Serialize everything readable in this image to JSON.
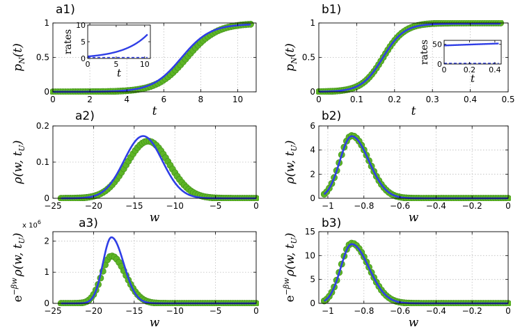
{
  "colors": {
    "simulation": "#5db426",
    "theory": "#2f3ee6",
    "sim_edge": "#3f8f17",
    "grid": "#bcbcbc"
  },
  "chart_data": [
    {
      "id": "a1",
      "type": "line",
      "title": "a1)",
      "xlabel": "t",
      "ylabel": "p_N(t)",
      "ylabel_parts": {
        "main": "p",
        "sub": "N",
        "args": "(t)"
      },
      "xlim": [
        0,
        11
      ],
      "ylim": [
        0,
        1
      ],
      "xticks": [
        0,
        2,
        4,
        6,
        8,
        10
      ],
      "yticks": [
        0,
        0.5,
        1
      ],
      "xtick_labels": [
        "0",
        "2",
        "4",
        "6",
        "8",
        "10"
      ],
      "ytick_labels": [
        "0",
        "0.5",
        "1"
      ],
      "grid": true,
      "series": [
        {
          "name": "simulation",
          "style": "markers",
          "model": "sigmoid",
          "center": 7.25,
          "width": 0.8,
          "amplitude": 0.995,
          "x_range": [
            0,
            10.7
          ],
          "n": 80
        },
        {
          "name": "theory",
          "style": "line",
          "model": "sigmoid",
          "center": 6.95,
          "width": 0.78,
          "amplitude": 0.985,
          "x_range": [
            0,
            10.7
          ]
        }
      ],
      "inset": {
        "xlabel": "t",
        "ylabel": "rates",
        "xlim": [
          0,
          11
        ],
        "ylim": [
          0,
          10
        ],
        "xticks": [
          0,
          5,
          10
        ],
        "yticks": [
          0,
          5,
          10
        ],
        "xtick_labels": [
          "0",
          "5",
          "10"
        ],
        "ytick_labels": [
          "0",
          "5",
          "10"
        ],
        "series": [
          {
            "name": "rate",
            "style": "line",
            "model": "exp",
            "start": 0.6,
            "end": 7.2,
            "x_range": [
              0,
              10.5
            ]
          },
          {
            "name": "baseline",
            "style": "dashed",
            "model": "const",
            "value": 0.3,
            "x_range": [
              0,
              10.5
            ]
          }
        ]
      }
    },
    {
      "id": "b1",
      "type": "line",
      "title": "b1)",
      "xlabel": "t",
      "ylabel": "p_N(t)",
      "ylabel_parts": {
        "main": "p",
        "sub": "N",
        "args": "(t)"
      },
      "xlim": [
        0,
        0.5
      ],
      "ylim": [
        0,
        1
      ],
      "xticks": [
        0,
        0.1,
        0.2,
        0.3,
        0.4,
        0.5
      ],
      "yticks": [
        0,
        0.5,
        1
      ],
      "xtick_labels": [
        "0",
        "0.1",
        "0.2",
        "0.3",
        "0.4",
        "0.5"
      ],
      "ytick_labels": [
        "0",
        "0.5",
        "1"
      ],
      "grid": true,
      "series": [
        {
          "name": "simulation",
          "style": "markers",
          "model": "sigmoid",
          "center": 0.17,
          "width": 0.028,
          "amplitude": 1.0,
          "x_range": [
            0,
            0.48
          ],
          "n": 80
        },
        {
          "name": "theory",
          "style": "line",
          "model": "sigmoid",
          "center": 0.169,
          "width": 0.028,
          "amplitude": 0.99,
          "x_range": [
            0,
            0.48
          ]
        }
      ],
      "inset": {
        "xlabel": "t",
        "ylabel": "rates",
        "xlim": [
          0,
          0.45
        ],
        "ylim": [
          0,
          60
        ],
        "xticks": [
          0,
          0.2,
          0.4
        ],
        "yticks": [
          0,
          50
        ],
        "xtick_labels": [
          "0",
          "0.2",
          "0.4"
        ],
        "ytick_labels": [
          "0",
          "50"
        ],
        "series": [
          {
            "name": "rate",
            "style": "line",
            "model": "linear",
            "start": 47,
            "end": 52,
            "x_range": [
              0,
              0.43
            ]
          },
          {
            "name": "baseline",
            "style": "dashed",
            "model": "const",
            "value": 2,
            "x_range": [
              0,
              0.43
            ]
          }
        ]
      }
    },
    {
      "id": "a2",
      "type": "line",
      "title": "a2)",
      "xlabel": "w",
      "ylabel": "ρ(w, t_U)",
      "ylabel_parts": {
        "main": "ρ(w, t",
        "sub": "U",
        "args": ")"
      },
      "xlim": [
        -25,
        0
      ],
      "ylim": [
        0,
        0.2
      ],
      "xticks": [
        -25,
        -20,
        -15,
        -10,
        -5,
        0
      ],
      "yticks": [
        0,
        0.1,
        0.2
      ],
      "xtick_labels": [
        "−25",
        "−20",
        "−15",
        "−10",
        "−5",
        "0"
      ],
      "ytick_labels": [
        "0",
        "0.1",
        "0.2"
      ],
      "grid": true,
      "series": [
        {
          "name": "simulation",
          "style": "markers",
          "model": "gauss",
          "center": -13.3,
          "sigma": 2.6,
          "peak": 0.158,
          "x_range": [
            -24,
            0
          ],
          "n": 85
        },
        {
          "name": "theory",
          "style": "line",
          "model": "gauss",
          "center": -13.9,
          "sigma": 2.35,
          "peak": 0.172,
          "x_range": [
            -24,
            0
          ]
        }
      ]
    },
    {
      "id": "b2",
      "type": "line",
      "title": "b2)",
      "xlabel": "w",
      "ylabel": "ρ(w, t_U)",
      "ylabel_parts": {
        "main": "ρ(w, t",
        "sub": "U",
        "args": ")"
      },
      "xlim": [
        -1.05,
        0
      ],
      "ylim": [
        0,
        6
      ],
      "xticks": [
        -1,
        -0.8,
        -0.6,
        -0.4,
        -0.2,
        0
      ],
      "yticks": [
        0,
        2,
        4,
        6
      ],
      "xtick_labels": [
        "−1",
        "−0.8",
        "−0.6",
        "−0.4",
        "−0.2",
        "0"
      ],
      "ytick_labels": [
        "0",
        "2",
        "4",
        "6"
      ],
      "grid": true,
      "series": [
        {
          "name": "simulation",
          "style": "markers",
          "model": "skewgauss",
          "center": -0.868,
          "sigma_left": 0.065,
          "sigma_right": 0.095,
          "peak": 5.2,
          "x_range": [
            -1.02,
            0
          ],
          "n": 75
        },
        {
          "name": "theory",
          "style": "line",
          "model": "skewgauss",
          "center": -0.868,
          "sigma_left": 0.065,
          "sigma_right": 0.095,
          "peak": 5.15,
          "x_range": [
            -1.02,
            0
          ]
        }
      ]
    },
    {
      "id": "a3",
      "type": "line",
      "title": "a3)",
      "xlabel": "w",
      "ylabel": "e^{−βw} ρ(w, t_U)",
      "ylabel_parts": {
        "pre": "e",
        "sup": "−βw",
        "main": "ρ(w, t",
        "sub": "U",
        "args": ")"
      },
      "xlim": [
        -25,
        0
      ],
      "ylim": [
        0,
        2.3
      ],
      "xticks": [
        -25,
        -20,
        -15,
        -10,
        -5,
        0
      ],
      "yticks": [
        0,
        1,
        2
      ],
      "xtick_labels": [
        "−25",
        "−20",
        "−15",
        "−10",
        "−5",
        "0"
      ],
      "ytick_labels": [
        "0",
        "1",
        "2"
      ],
      "y_multiplier": "x 10",
      "y_multiplier_exp": "6",
      "grid": true,
      "series": [
        {
          "name": "simulation",
          "style": "markers",
          "model": "skewgauss",
          "center": -17.8,
          "sigma_left": 1.2,
          "sigma_right": 1.75,
          "peak": 1.52,
          "x_range": [
            -24,
            0
          ],
          "n": 85
        },
        {
          "name": "theory",
          "style": "line",
          "model": "skewgauss",
          "center": -17.8,
          "sigma_left": 1.05,
          "sigma_right": 1.5,
          "peak": 2.12,
          "x_range": [
            -24,
            0
          ]
        }
      ]
    },
    {
      "id": "b3",
      "type": "line",
      "title": "b3)",
      "xlabel": "w",
      "ylabel": "e^{−βw} ρ(w, t_U)",
      "ylabel_parts": {
        "pre": "e",
        "sup": "−βw",
        "main": "ρ(w, t",
        "sub": "U",
        "args": ")"
      },
      "xlim": [
        -1.05,
        0
      ],
      "ylim": [
        0,
        15
      ],
      "xticks": [
        -1,
        -0.8,
        -0.6,
        -0.4,
        -0.2,
        0
      ],
      "yticks": [
        0,
        5,
        10,
        15
      ],
      "xtick_labels": [
        "−1",
        "−0.8",
        "−0.6",
        "−0.4",
        "−0.2",
        "0"
      ],
      "ytick_labels": [
        "0",
        "5",
        "10",
        "15"
      ],
      "grid": true,
      "series": [
        {
          "name": "simulation",
          "style": "markers",
          "model": "skewgauss",
          "center": -0.868,
          "sigma_left": 0.06,
          "sigma_right": 0.095,
          "peak": 12.6,
          "x_range": [
            -1.02,
            0
          ],
          "n": 75
        },
        {
          "name": "theory",
          "style": "line",
          "model": "skewgauss",
          "center": -0.868,
          "sigma_left": 0.06,
          "sigma_right": 0.095,
          "peak": 12.4,
          "x_range": [
            -1.02,
            0
          ]
        }
      ]
    }
  ]
}
